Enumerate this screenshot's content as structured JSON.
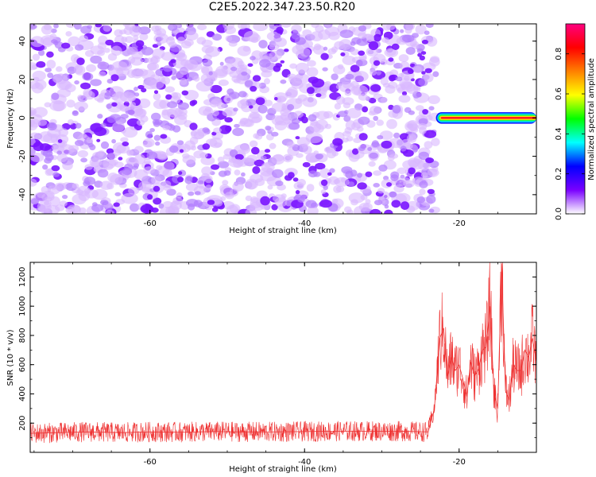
{
  "figure": {
    "title": "C2E5.2022.347.23.50.R20"
  },
  "colors": {
    "noise_purple": "#7a14ff",
    "signal_red": "#ee2222",
    "snr_line": "#ee3030",
    "axis": "#000000"
  },
  "chart_data": [
    {
      "type": "heatmap",
      "xlabel": "Height of straight line (km)",
      "ylabel": "Frequency (Hz)",
      "xlim": [
        -75.5,
        -10
      ],
      "ylim": [
        -50,
        49
      ],
      "x_ticks": [
        -60,
        -40,
        -20
      ],
      "y_ticks": [
        -40,
        -20,
        0,
        20,
        40
      ],
      "grid": false,
      "noise_region": {
        "x_range": [
          -75.5,
          -23
        ],
        "y_range": [
          -50,
          49
        ],
        "amplitude": "low (~0.1-0.2)"
      },
      "signal_band": {
        "x_range": [
          -23,
          -10
        ],
        "frequency": 0,
        "half_width_hz": 3,
        "peak_amplitude": 1.0
      },
      "colorbar": {
        "label": "Normalized spectral amplitude",
        "range": [
          0,
          0.95
        ],
        "ticks": [
          0.0,
          0.2,
          0.4,
          0.6,
          0.8
        ],
        "tick_labels": [
          "0.0",
          "0.2",
          "0.4",
          "0.6",
          "0.8"
        ],
        "colormap": [
          "#ffffff",
          "#7a00ff",
          "#0000ff",
          "#00ffff",
          "#00ff00",
          "#ffff00",
          "#ff8000",
          "#ff0000",
          "#ff007f"
        ]
      }
    },
    {
      "type": "line",
      "xlabel": "Height of straight line (km)",
      "ylabel": "SNR (10 * v/v)",
      "xlim": [
        -75.5,
        -10
      ],
      "ylim": [
        0,
        1300
      ],
      "x_ticks": [
        -60,
        -40,
        -20
      ],
      "y_ticks": [
        200,
        400,
        600,
        800,
        1000,
        1200
      ],
      "grid": false,
      "series": [
        {
          "x": [
            -75.5,
            -72,
            -68,
            -64,
            -60,
            -56,
            -52,
            -48,
            -44,
            -40,
            -36,
            -32,
            -28,
            -24,
            -23.2,
            -22.5,
            -22,
            -21.5,
            -21,
            -20.5,
            -20,
            -19.5,
            -19,
            -18.5,
            -18,
            -17.5,
            -17,
            -16.5,
            -16,
            -15.5,
            -15,
            -14.5,
            -14,
            -13.5,
            -13,
            -12.5,
            -12,
            -11.5,
            -11,
            -10.5,
            -10
          ],
          "y": [
            130,
            135,
            140,
            135,
            140,
            138,
            142,
            140,
            140,
            142,
            145,
            145,
            145,
            140,
            300,
            780,
            850,
            520,
            650,
            560,
            600,
            500,
            380,
            620,
            520,
            570,
            700,
            720,
            1000,
            420,
            300,
            1290,
            420,
            360,
            600,
            560,
            560,
            700,
            650,
            780,
            620
          ]
        }
      ]
    }
  ]
}
